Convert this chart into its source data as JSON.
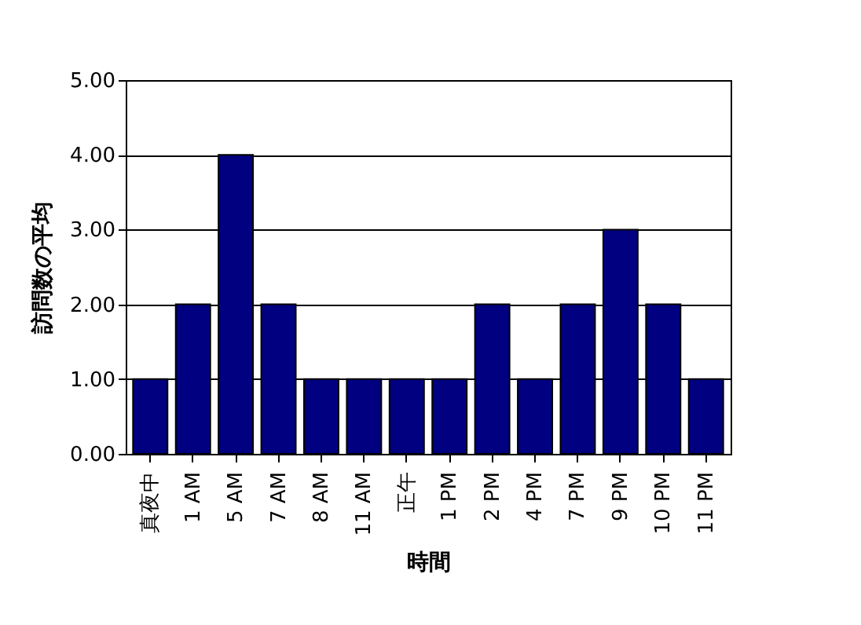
{
  "chart_data": {
    "type": "bar",
    "xlabel": "時間",
    "ylabel": "訪問数の平均",
    "categories": [
      "真夜中",
      "1 AM",
      "5 AM",
      "7 AM",
      "8 AM",
      "11 AM",
      "正午",
      "1 PM",
      "2 PM",
      "4 PM",
      "7 PM",
      "9 PM",
      "10 PM",
      "11 PM"
    ],
    "values": [
      1,
      2,
      4,
      2,
      1,
      1,
      1,
      1,
      2,
      1,
      2,
      3,
      2,
      1
    ],
    "color": "#000080",
    "ylim": [
      0,
      5
    ],
    "yticks": [
      {
        "value": 0,
        "label": "0.00"
      },
      {
        "value": 1,
        "label": "1.00"
      },
      {
        "value": 2,
        "label": "2.00"
      },
      {
        "value": 3,
        "label": "3.00"
      },
      {
        "value": 4,
        "label": "4.00"
      },
      {
        "value": 5,
        "label": "5.00"
      }
    ],
    "grid": "y"
  }
}
